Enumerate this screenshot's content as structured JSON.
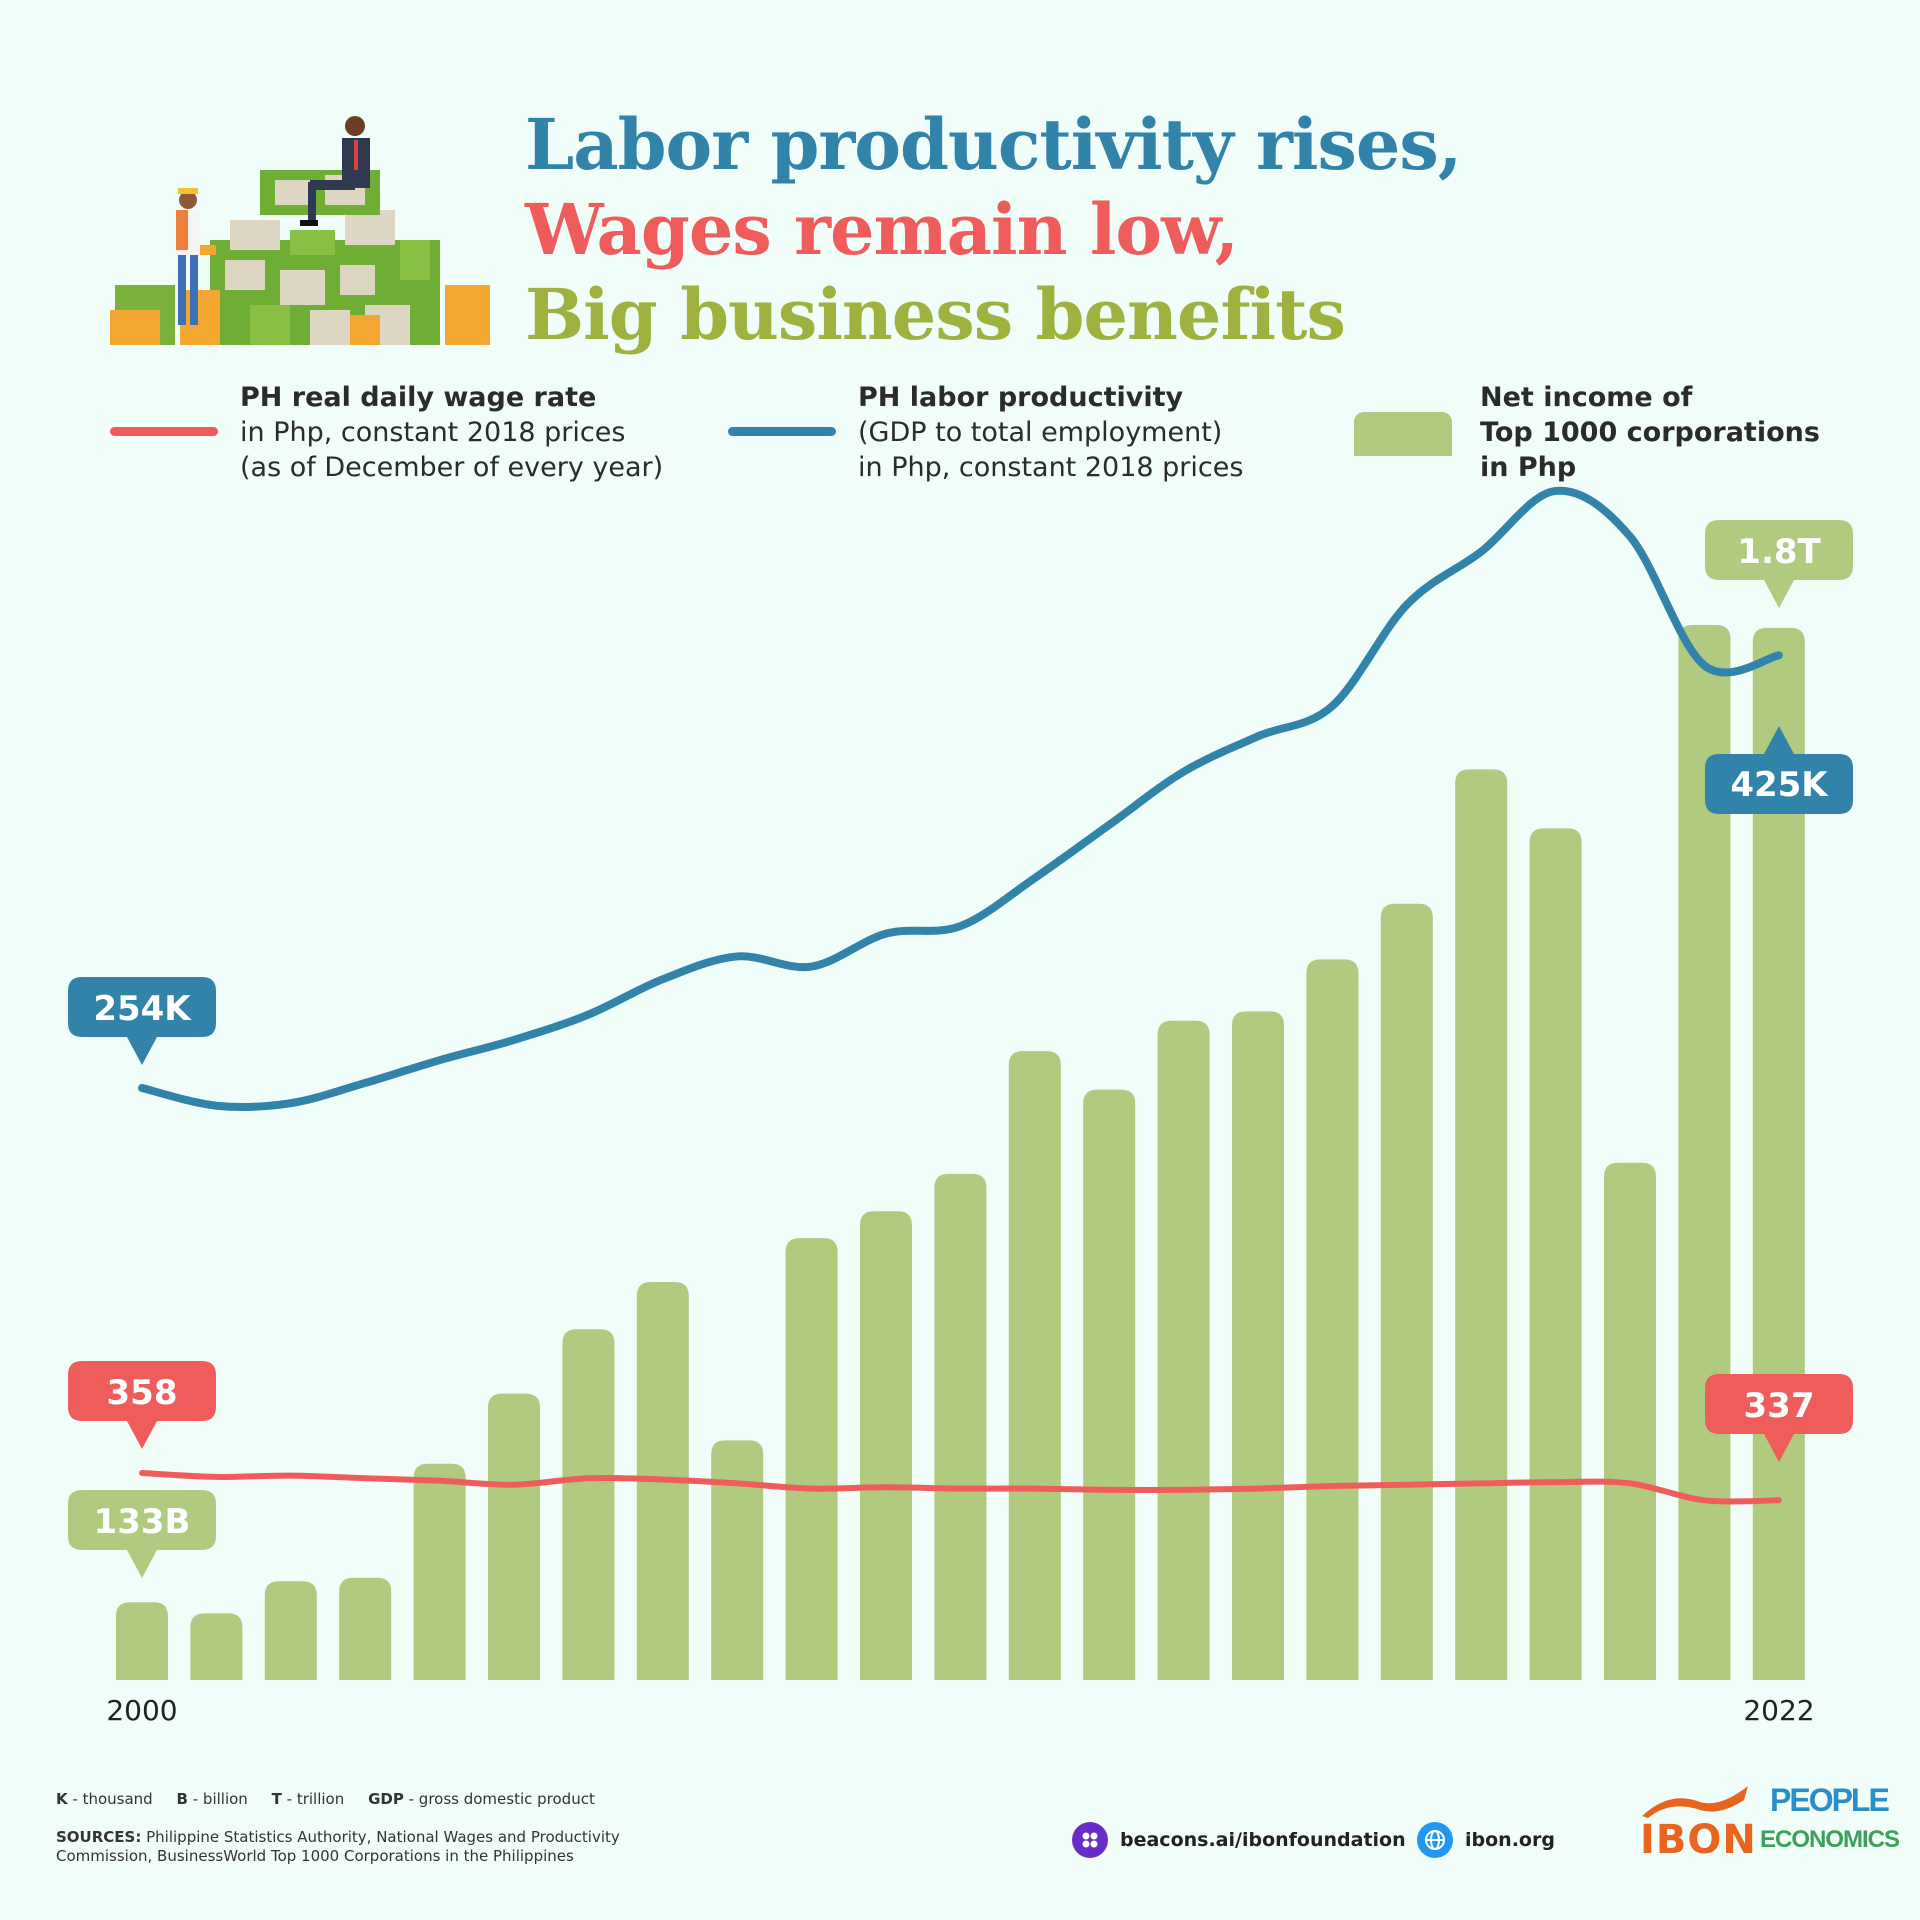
{
  "title": {
    "line1": "Labor productivity rises,",
    "line2": "Wages remain low,",
    "line3": "Big business benefits"
  },
  "colors": {
    "blue": "#3283a9",
    "red": "#ee5c5c",
    "green": "#b0ca80",
    "olive": "#9fb23f"
  },
  "legend": {
    "wage": {
      "title": "PH real daily wage rate",
      "line2": "in Php, constant 2018 prices",
      "line3": "(as of December of every year)"
    },
    "productivity": {
      "title": "PH labor productivity",
      "line2": "(GDP to total employment)",
      "line3": "in Php, constant 2018 prices"
    },
    "income": {
      "line1": "Net income of",
      "line2": "Top 1000 corporations",
      "line3": "in Php"
    }
  },
  "chart_data": {
    "type": "bar",
    "categories": [
      "2000",
      "2001",
      "2002",
      "2003",
      "2004",
      "2005",
      "2006",
      "2007",
      "2008",
      "2009",
      "2010",
      "2011",
      "2012",
      "2013",
      "2014",
      "2015",
      "2016",
      "2017",
      "2018",
      "2019",
      "2020",
      "2021",
      "2022"
    ],
    "x_tick_labels": [
      "2000",
      "2022"
    ],
    "series": [
      {
        "kind": "bar",
        "values": [
          133,
          114,
          169,
          175,
          370,
          490,
          600,
          681,
          410,
          756,
          802,
          866,
          1076,
          1010,
          1128,
          1144,
          1233,
          1328,
          1558,
          1457,
          885,
          1805,
          1800
        ]
      },
      {
        "kind": "line",
        "values": [
          254,
          247,
          248,
          256,
          265,
          273,
          283,
          297,
          306,
          302,
          315,
          318,
          337,
          358,
          379,
          393,
          405,
          445,
          466,
          490,
          472,
          421,
          425
        ]
      },
      {
        "kind": "line",
        "values": [
          358,
          355,
          356,
          354,
          352,
          349,
          354,
          353,
          350,
          346,
          347,
          346,
          346,
          345,
          345,
          346,
          348,
          349,
          350,
          351,
          350,
          337,
          337
        ]
      }
    ],
    "callouts": {
      "income_start": "133B",
      "income_end": "1.8T",
      "productivity_start": "254K",
      "productivity_end": "425K",
      "wage_start": "358",
      "wage_end": "337"
    },
    "grid": false
  },
  "footer": {
    "abbr": [
      {
        "key": "K",
        "text": " - thousand"
      },
      {
        "key": "B",
        "text": " - billion"
      },
      {
        "key": "T",
        "text": " - trillion"
      },
      {
        "key": "GDP",
        "text": " - gross domestic product"
      }
    ],
    "sources_label": "SOURCES:",
    "sources_line1": "Philippine Statistics Authority, National Wages and Productivity",
    "sources_line2": "Commission, BusinessWorld Top 1000 Corporations in the Philippines",
    "link1": "beacons.ai/ibonfoundation",
    "link2": "ibon.org",
    "logo1": "IBON",
    "logo2_top": "PEOPLE",
    "logo2_bottom": "ECONOMICS"
  }
}
